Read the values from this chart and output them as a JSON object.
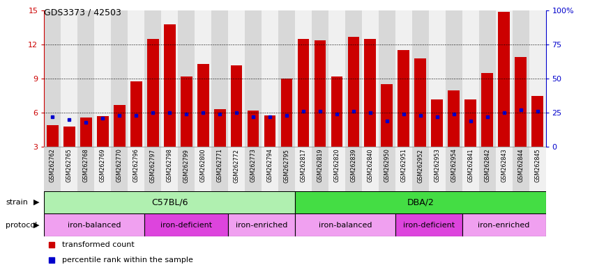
{
  "title": "GDS3373 / 42503",
  "samples": [
    "GSM262762",
    "GSM262765",
    "GSM262768",
    "GSM262769",
    "GSM262770",
    "GSM262796",
    "GSM262797",
    "GSM262798",
    "GSM262799",
    "GSM262800",
    "GSM262771",
    "GSM262772",
    "GSM262773",
    "GSM262794",
    "GSM262795",
    "GSM262817",
    "GSM262819",
    "GSM262820",
    "GSM262839",
    "GSM262840",
    "GSM262950",
    "GSM262951",
    "GSM262952",
    "GSM262953",
    "GSM262954",
    "GSM262841",
    "GSM262842",
    "GSM262843",
    "GSM262844",
    "GSM262845"
  ],
  "transformed_count": [
    4.9,
    4.8,
    5.6,
    5.7,
    6.7,
    8.8,
    12.5,
    13.8,
    9.2,
    10.3,
    6.3,
    10.2,
    6.2,
    5.8,
    9.0,
    12.5,
    12.4,
    9.2,
    12.7,
    12.5,
    8.5,
    11.5,
    10.8,
    7.2,
    8.0,
    7.2,
    9.5,
    14.9,
    10.9,
    7.5
  ],
  "percentile_rank_pct": [
    22,
    20,
    18,
    21,
    23,
    23,
    25,
    25,
    24,
    25,
    24,
    25,
    22,
    22,
    23,
    26,
    26,
    24,
    26,
    25,
    19,
    24,
    23,
    22,
    24,
    19,
    22,
    25,
    27,
    26
  ],
  "ymin": 3,
  "ymax": 15,
  "yticks_left": [
    3,
    6,
    9,
    12,
    15
  ],
  "yticks_right": [
    0,
    25,
    50,
    75,
    100
  ],
  "ytick_labels_right": [
    "0",
    "25",
    "50",
    "75",
    "100%"
  ],
  "bar_color": "#cc0000",
  "percentile_color": "#0000cc",
  "col_bg_even": "#d8d8d8",
  "col_bg_odd": "#f0f0f0",
  "gap_col": "#ffffff",
  "strain_groups": [
    {
      "label": "C57BL/6",
      "start": 0,
      "end": 15,
      "color": "#b0f0b0"
    },
    {
      "label": "DBA/2",
      "start": 15,
      "end": 30,
      "color": "#44dd44"
    }
  ],
  "protocol_groups": [
    {
      "label": "iron-balanced",
      "start": 0,
      "end": 6,
      "color": "#f0a0f0"
    },
    {
      "label": "iron-deficient",
      "start": 6,
      "end": 11,
      "color": "#dd44dd"
    },
    {
      "label": "iron-enriched",
      "start": 11,
      "end": 15,
      "color": "#f0a0f0"
    },
    {
      "label": "iron-balanced",
      "start": 15,
      "end": 21,
      "color": "#f0a0f0"
    },
    {
      "label": "iron-deficient",
      "start": 21,
      "end": 25,
      "color": "#dd44dd"
    },
    {
      "label": "iron-enriched",
      "start": 25,
      "end": 30,
      "color": "#f0a0f0"
    }
  ]
}
